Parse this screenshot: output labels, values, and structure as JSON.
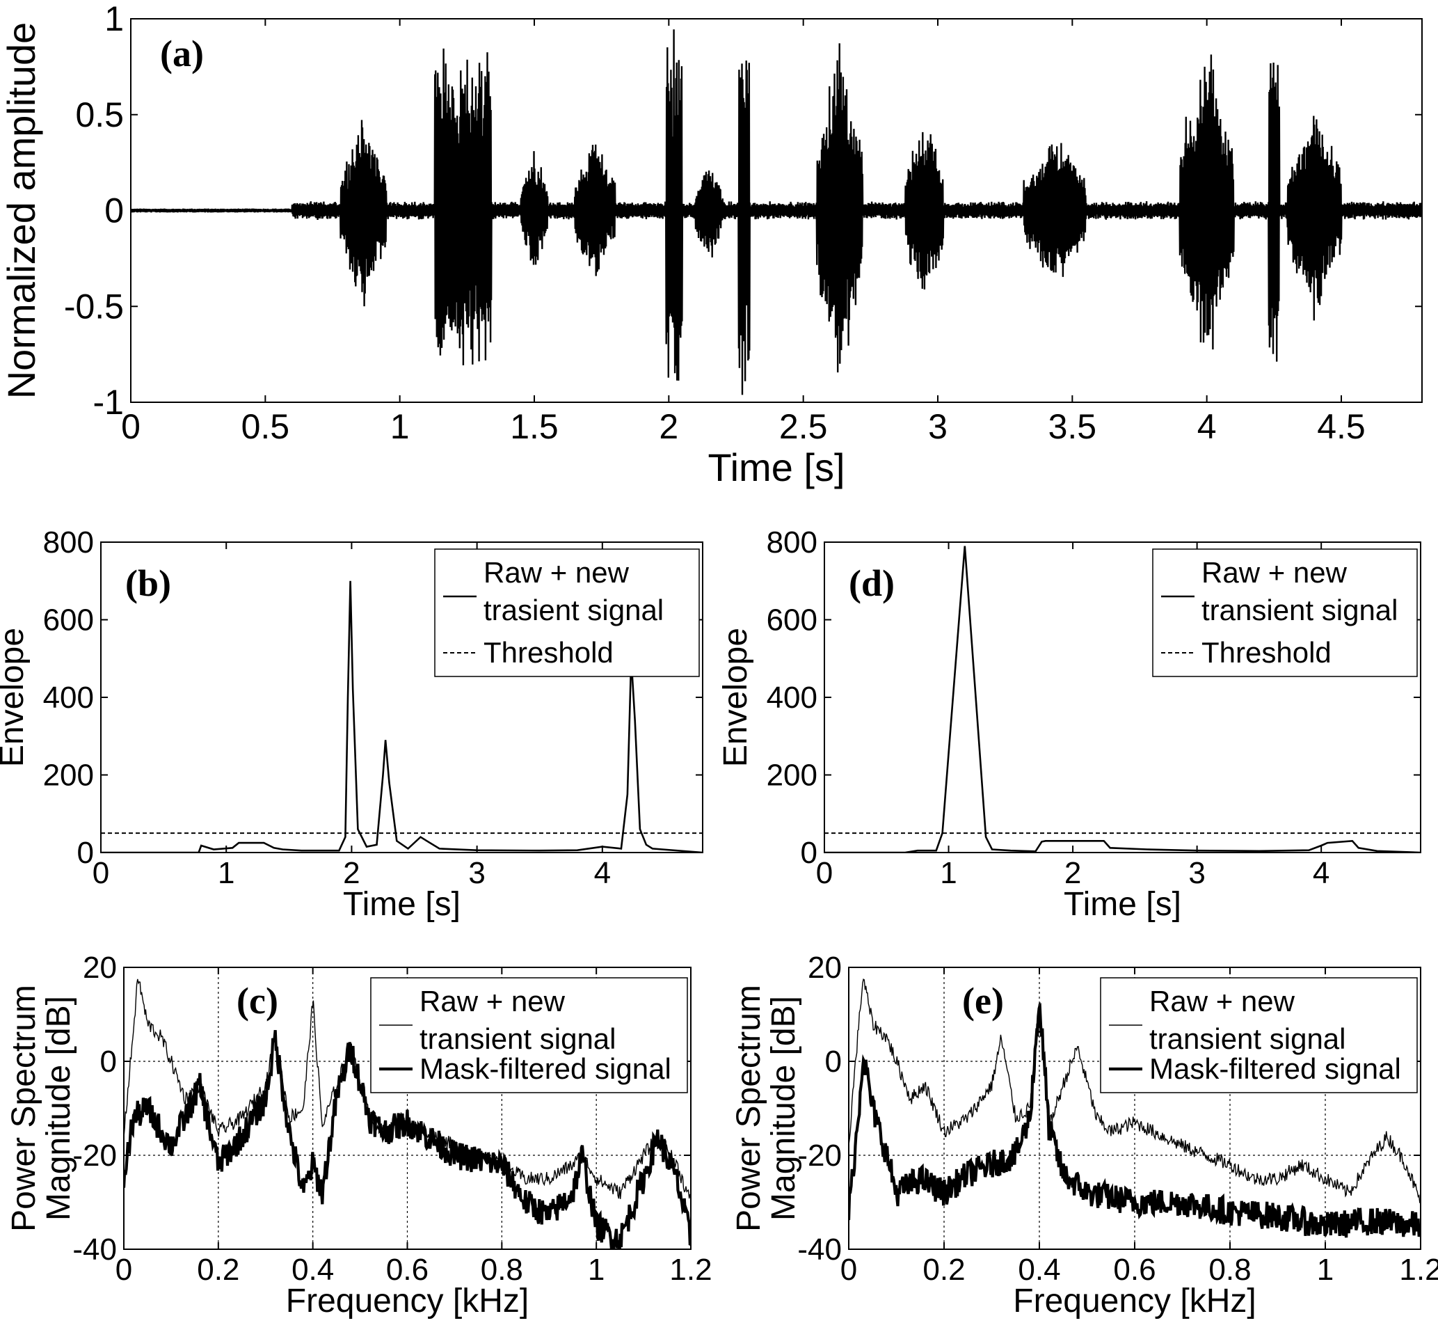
{
  "chart_data": [
    {
      "panel": "(a)",
      "type": "line",
      "xlabel": "Time [s]",
      "ylabel": "Normalized amplitude",
      "xlim": [
        0,
        4.8
      ],
      "ylim": [
        -1,
        1
      ],
      "xticks": [
        "0",
        "0.5",
        "1",
        "1.5",
        "2",
        "2.5",
        "3",
        "3.5",
        "4",
        "4.5"
      ],
      "yticks": [
        "-1",
        "-0.5",
        "0",
        "0.5",
        "1"
      ],
      "bursts": [
        {
          "t_start": 0.78,
          "t_end": 0.95,
          "peak": 0.55,
          "dense": false
        },
        {
          "t_start": 1.13,
          "t_end": 1.34,
          "peak": 0.88,
          "dense": true
        },
        {
          "t_start": 1.45,
          "t_end": 1.55,
          "peak": 0.35,
          "dense": false
        },
        {
          "t_start": 1.65,
          "t_end": 1.8,
          "peak": 0.4,
          "dense": false
        },
        {
          "t_start": 1.99,
          "t_end": 2.05,
          "peak": 1.0,
          "dense": true
        },
        {
          "t_start": 2.1,
          "t_end": 2.2,
          "peak": 0.3,
          "dense": false
        },
        {
          "t_start": 2.26,
          "t_end": 2.3,
          "peak": 1.0,
          "dense": true
        },
        {
          "t_start": 2.55,
          "t_end": 2.72,
          "peak": 1.0,
          "dense": false
        },
        {
          "t_start": 2.88,
          "t_end": 3.02,
          "peak": 0.55,
          "dense": false
        },
        {
          "t_start": 3.32,
          "t_end": 3.55,
          "peak": 0.45,
          "dense": false
        },
        {
          "t_start": 3.9,
          "t_end": 4.1,
          "peak": 0.95,
          "dense": false
        },
        {
          "t_start": 4.23,
          "t_end": 4.27,
          "peak": 1.0,
          "dense": true
        },
        {
          "t_start": 4.3,
          "t_end": 4.5,
          "peak": 0.6,
          "dense": false
        }
      ]
    },
    {
      "panel": "(b)",
      "type": "line",
      "xlabel": "Time [s]",
      "ylabel": "Envelope",
      "xlim": [
        0,
        4.8
      ],
      "ylim": [
        0,
        800
      ],
      "xticks": [
        "0",
        "1",
        "2",
        "3",
        "4"
      ],
      "yticks": [
        "0",
        "200",
        "400",
        "600",
        "800"
      ],
      "legend": [
        "Raw + new\ntrasient signal",
        "Threshold"
      ],
      "legend_position": "top-right",
      "threshold": 50,
      "series": [
        {
          "name": "Raw + new trasient signal",
          "x": [
            0,
            0.78,
            0.8,
            0.9,
            1.05,
            1.1,
            1.3,
            1.38,
            1.45,
            1.6,
            1.9,
            1.95,
            1.97,
            1.99,
            2.01,
            2.05,
            2.12,
            2.2,
            2.25,
            2.27,
            2.3,
            2.36,
            2.45,
            2.55,
            2.6,
            2.7,
            3.0,
            3.5,
            3.8,
            4.0,
            4.15,
            4.2,
            4.23,
            4.26,
            4.3,
            4.35,
            4.4,
            4.8
          ],
          "y": [
            0,
            0,
            18,
            8,
            12,
            25,
            25,
            12,
            8,
            5,
            5,
            40,
            400,
            700,
            420,
            60,
            15,
            20,
            200,
            290,
            180,
            30,
            10,
            40,
            30,
            10,
            6,
            5,
            6,
            15,
            10,
            150,
            500,
            340,
            60,
            20,
            10,
            0
          ]
        }
      ]
    },
    {
      "panel": "(d)",
      "type": "line",
      "xlabel": "Time [s]",
      "ylabel": "Envelope",
      "xlim": [
        0,
        4.8
      ],
      "ylim": [
        0,
        800
      ],
      "xticks": [
        "0",
        "1",
        "2",
        "3",
        "4"
      ],
      "yticks": [
        "0",
        "200",
        "400",
        "600",
        "800"
      ],
      "legend": [
        "Raw + new\ntransient signal",
        "Threshold"
      ],
      "legend_position": "top-right",
      "threshold": 50,
      "series": [
        {
          "name": "Raw + new transient signal",
          "x": [
            0,
            0.65,
            0.75,
            0.9,
            0.95,
            1.13,
            1.3,
            1.35,
            1.5,
            1.7,
            1.75,
            1.78,
            2.25,
            2.3,
            2.6,
            3.0,
            3.5,
            3.9,
            4.0,
            4.05,
            4.25,
            4.3,
            4.45,
            4.8
          ],
          "y": [
            0,
            0,
            5,
            5,
            50,
            790,
            40,
            8,
            5,
            3,
            28,
            30,
            30,
            12,
            8,
            5,
            4,
            6,
            18,
            25,
            30,
            12,
            4,
            0
          ]
        }
      ]
    },
    {
      "panel": "(c)",
      "type": "line",
      "xlabel": "Frequency [kHz]",
      "ylabel": "Power Spectrum\nMagnitude [dB]",
      "xlim": [
        0,
        1.2
      ],
      "ylim": [
        -40,
        20
      ],
      "xticks": [
        "0",
        "0.2",
        "0.4",
        "0.6",
        "0.8",
        "1",
        "1.2"
      ],
      "yticks": [
        "-40",
        "-20",
        "0",
        "20"
      ],
      "grid": true,
      "legend": [
        "Raw + new\ntransient signal",
        "Mask-filtered signal"
      ],
      "legend_position": "top-right",
      "series": [
        {
          "name": "Raw + new transient signal",
          "x": [
            0,
            0.01,
            0.03,
            0.05,
            0.08,
            0.1,
            0.13,
            0.16,
            0.2,
            0.25,
            0.3,
            0.32,
            0.35,
            0.38,
            0.4,
            0.42,
            0.45,
            0.48,
            0.52,
            0.55,
            0.6,
            0.7,
            0.8,
            0.85,
            0.9,
            0.95,
            0.97,
            1.0,
            1.05,
            1.1,
            1.13,
            1.17,
            1.2
          ],
          "y": [
            -15,
            -5,
            18,
            8,
            5,
            0,
            -8,
            -5,
            -15,
            -12,
            -5,
            5,
            -12,
            -10,
            13,
            -14,
            -5,
            3,
            -12,
            -15,
            -13,
            -18,
            -22,
            -25,
            -25,
            -22,
            -20,
            -25,
            -28,
            -20,
            -16,
            -22,
            -30
          ]
        },
        {
          "name": "Mask-filtered signal",
          "x": [
            0,
            0.02,
            0.05,
            0.08,
            0.1,
            0.13,
            0.16,
            0.2,
            0.25,
            0.3,
            0.32,
            0.35,
            0.38,
            0.4,
            0.42,
            0.45,
            0.48,
            0.52,
            0.55,
            0.6,
            0.7,
            0.8,
            0.85,
            0.9,
            0.95,
            0.97,
            1.0,
            1.05,
            1.1,
            1.13,
            1.17,
            1.2
          ],
          "y": [
            -25,
            -12,
            -10,
            -15,
            -18,
            -12,
            -5,
            -22,
            -16,
            -8,
            5,
            -15,
            -28,
            -22,
            -28,
            -8,
            3,
            -12,
            -15,
            -13,
            -20,
            -22,
            -30,
            -33,
            -28,
            -20,
            -35,
            -38,
            -25,
            -16,
            -25,
            -38
          ]
        }
      ]
    },
    {
      "panel": "(e)",
      "type": "line",
      "xlabel": "Frequency [kHz]",
      "ylabel": "Power Spectrum\nMagnitude [dB]",
      "xlim": [
        0,
        1.2
      ],
      "ylim": [
        -40,
        20
      ],
      "xticks": [
        "0",
        "0.2",
        "0.4",
        "0.6",
        "0.8",
        "1",
        "1.2"
      ],
      "yticks": [
        "-40",
        "-20",
        "0",
        "20"
      ],
      "grid": true,
      "legend": [
        "Raw + new\ntransient signal",
        "Mask-filtered signal"
      ],
      "legend_position": "top-right",
      "series": [
        {
          "name": "Raw + new transient signal",
          "x": [
            0,
            0.01,
            0.03,
            0.05,
            0.08,
            0.1,
            0.13,
            0.16,
            0.2,
            0.25,
            0.3,
            0.32,
            0.35,
            0.38,
            0.4,
            0.42,
            0.45,
            0.48,
            0.52,
            0.55,
            0.6,
            0.7,
            0.8,
            0.85,
            0.9,
            0.95,
            1.0,
            1.05,
            1.1,
            1.13,
            1.17,
            1.2
          ],
          "y": [
            -18,
            -5,
            18,
            8,
            5,
            0,
            -8,
            -5,
            -15,
            -12,
            -5,
            5,
            -12,
            -10,
            13,
            -14,
            -5,
            3,
            -12,
            -15,
            -13,
            -18,
            -22,
            -25,
            -25,
            -22,
            -25,
            -28,
            -20,
            -16,
            -22,
            -30
          ]
        },
        {
          "name": "Mask-filtered signal",
          "x": [
            0,
            0.02,
            0.03,
            0.05,
            0.08,
            0.1,
            0.15,
            0.2,
            0.25,
            0.3,
            0.35,
            0.38,
            0.4,
            0.42,
            0.45,
            0.5,
            0.6,
            0.7,
            0.8,
            0.9,
            1.0,
            1.1,
            1.2
          ],
          "y": [
            -32,
            -12,
            2,
            -10,
            -20,
            -28,
            -25,
            -28,
            -24,
            -22,
            -20,
            -12,
            13,
            -14,
            -24,
            -28,
            -30,
            -30,
            -32,
            -33,
            -35,
            -34,
            -35
          ]
        }
      ]
    }
  ]
}
